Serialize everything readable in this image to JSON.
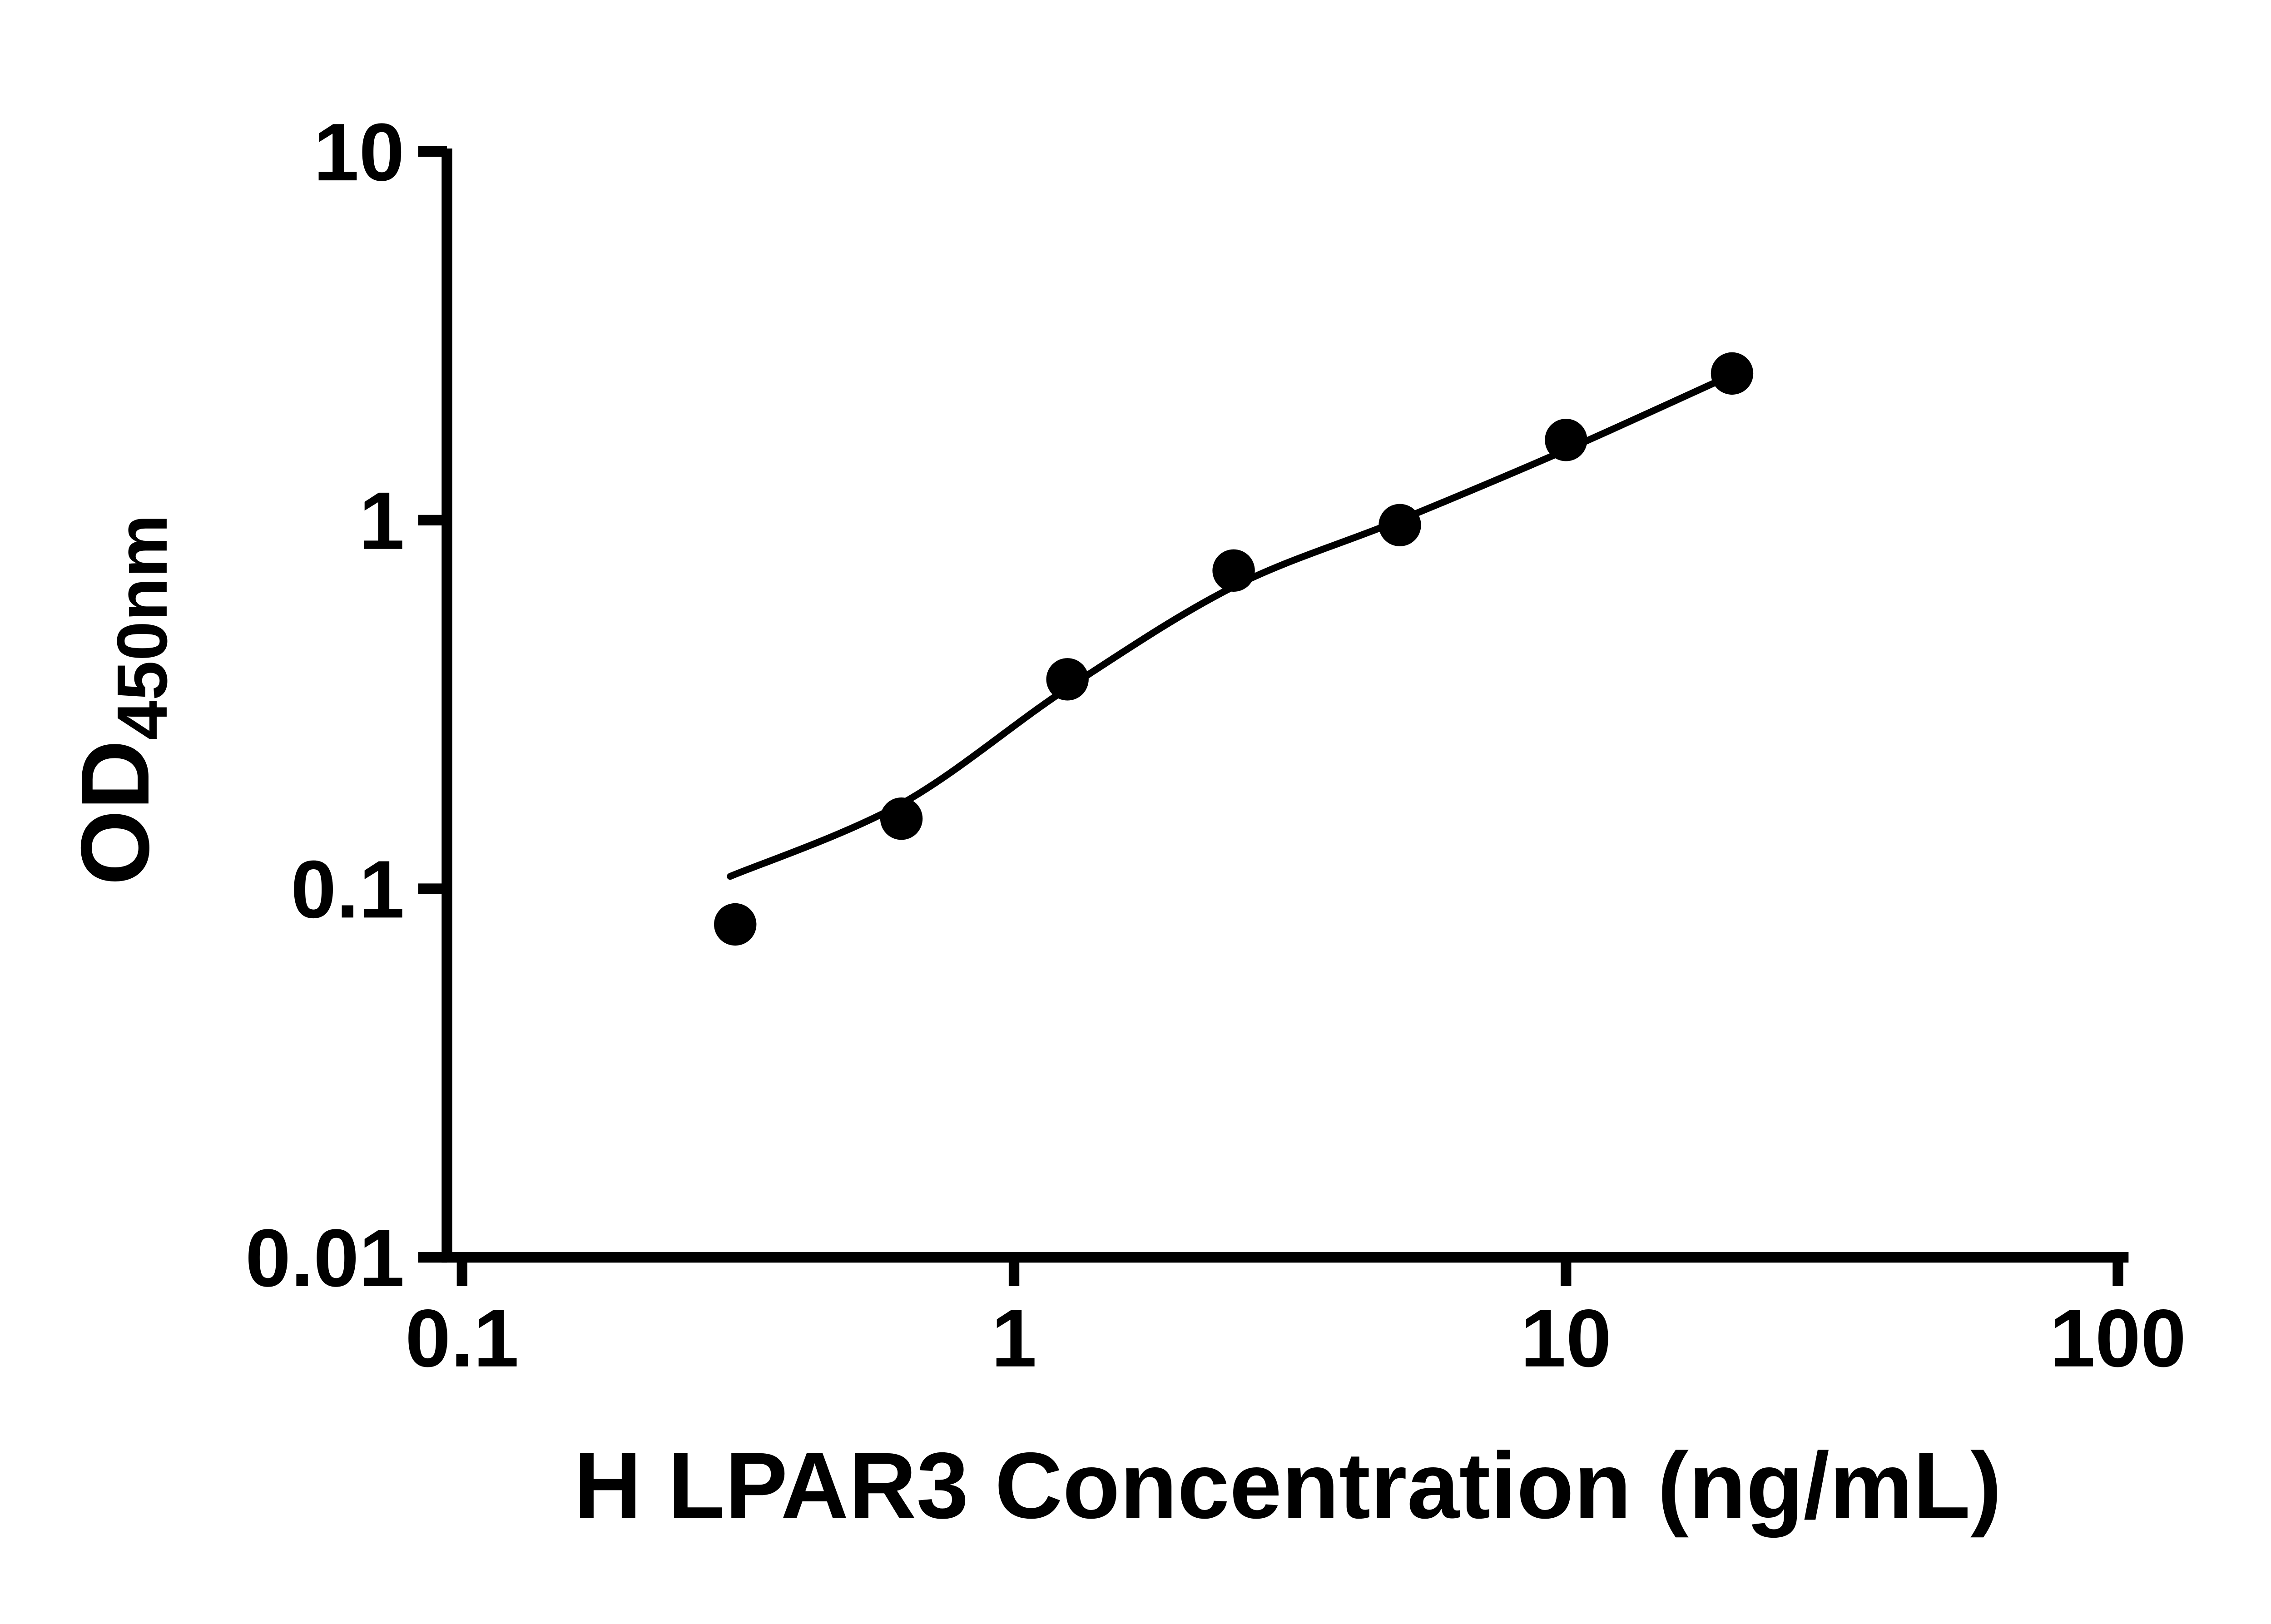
{
  "chart_data": {
    "type": "scatter",
    "title": "",
    "xlabel": "H LPAR3 Concentration (ng/mL)",
    "ylabel": "OD450nm",
    "ylabel_base": "OD",
    "ylabel_subscript": "450nm",
    "x_scale": "log10",
    "y_scale": "log10",
    "xlim": [
      0.1,
      100
    ],
    "ylim": [
      0.01,
      10
    ],
    "x_ticks": [
      0.1,
      1,
      10,
      100
    ],
    "x_tick_labels": [
      "0.1",
      "1",
      "10",
      "100"
    ],
    "y_ticks": [
      0.01,
      0.1,
      1,
      10
    ],
    "y_tick_labels": [
      "0.01",
      "0.1",
      "1",
      "10"
    ],
    "grid": false,
    "legend": "none",
    "marker_color": "#000000",
    "line_color": "#000000",
    "background_color": "#ffffff",
    "series": [
      {
        "x": [
          0.3125,
          0.625,
          1.25,
          2.5,
          5,
          10,
          20
        ],
        "y": [
          0.08,
          0.155,
          0.37,
          0.73,
          0.97,
          1.65,
          2.5
        ]
      }
    ],
    "fit_curve": {
      "x": [
        0.306,
        0.625,
        1.25,
        2.5,
        5,
        10,
        20
      ],
      "y": [
        0.108,
        0.17,
        0.35,
        0.66,
        1.0,
        1.55,
        2.48
      ]
    }
  }
}
